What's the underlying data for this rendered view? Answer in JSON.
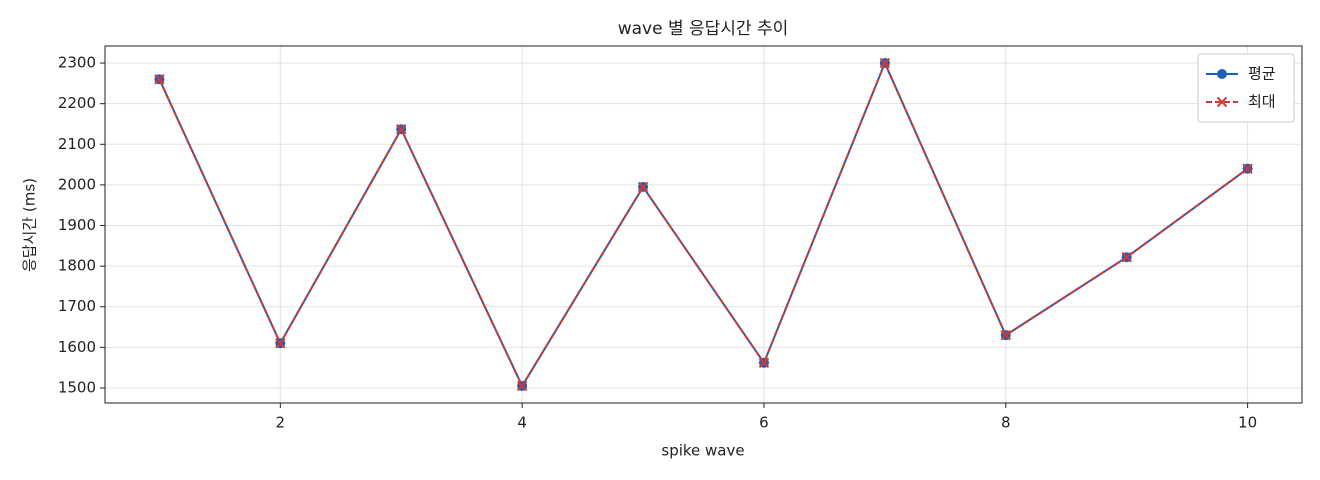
{
  "chart_data": {
    "type": "line",
    "title": "wave 별 응답시간 추이",
    "x_label": "spike wave",
    "y_label": "응답시간 (ms)",
    "x": [
      1,
      2,
      3,
      4,
      5,
      6,
      7,
      8,
      9,
      10
    ],
    "series": [
      {
        "name": "평균",
        "color": "#1f5fb4",
        "marker": "circle",
        "linestyle": "solid",
        "values": [
          2260,
          1610,
          2137,
          1505,
          1995,
          1562,
          2300,
          1630,
          1822,
          2040
        ]
      },
      {
        "name": "최대",
        "color": "#d03a36",
        "marker": "x",
        "linestyle": "dashed",
        "values": [
          2260,
          1610,
          2137,
          1505,
          1995,
          1562,
          2300,
          1630,
          1822,
          2040
        ]
      }
    ],
    "xlim": [
      0.55,
      10.45
    ],
    "ylim": [
      1463,
      2342
    ],
    "xticks": [
      2,
      4,
      6,
      8,
      10
    ],
    "yticks": [
      1500,
      1600,
      1700,
      1800,
      1900,
      2000,
      2100,
      2200,
      2300
    ],
    "grid": true,
    "legend": "upper right"
  }
}
